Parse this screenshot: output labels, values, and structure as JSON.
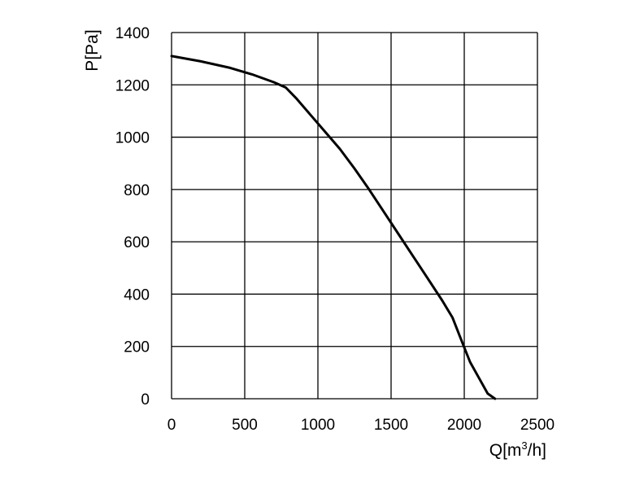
{
  "chart_data": {
    "type": "line",
    "xlabel": "Q[m3/h]",
    "xlabel_parts": {
      "base": "Q[m",
      "sup": "3",
      "tail": "/h]"
    },
    "ylabel": "P[Pa]",
    "xlim": [
      0,
      2500
    ],
    "ylim": [
      0,
      1400
    ],
    "xticks": [
      0,
      500,
      1000,
      1500,
      2000,
      2500
    ],
    "yticks": [
      0,
      200,
      400,
      600,
      800,
      1000,
      1200,
      1400
    ],
    "grid": true,
    "series": [
      {
        "x": [
          0,
          200,
          400,
          550,
          700,
          780,
          850,
          950,
          1050,
          1150,
          1250,
          1350,
          1450,
          1550,
          1650,
          1750,
          1850,
          1920,
          1990,
          2040,
          2100,
          2160,
          2210
        ],
        "y": [
          1310,
          1290,
          1265,
          1240,
          1210,
          1190,
          1150,
          1085,
          1020,
          955,
          880,
          800,
          715,
          630,
          545,
          460,
          375,
          310,
          210,
          140,
          80,
          20,
          0
        ]
      }
    ]
  }
}
